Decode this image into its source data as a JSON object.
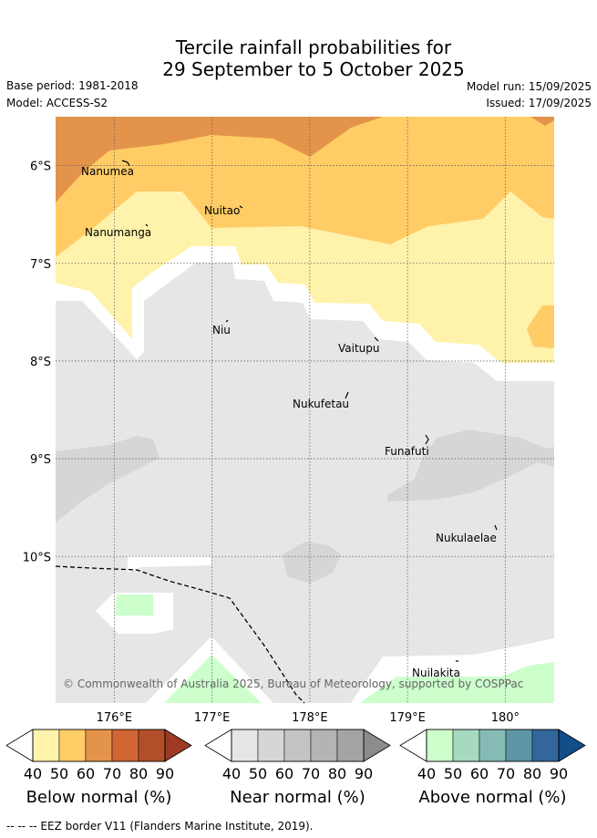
{
  "header": {
    "title_line1": "Tercile rainfall probabilities for",
    "title_line2": "29 September to 5 October 2025",
    "base_period": "Base period: 1981-2018",
    "model": "Model: ACCESS-S2",
    "model_run": "Model run: 15/09/2025",
    "issued": "Issued: 17/09/2025"
  },
  "chart_data": {
    "type": "heatmap",
    "title": "Tercile rainfall probabilities for 29 September to 5 October 2025",
    "x_axis": {
      "ticks": [
        "176°E",
        "177°E",
        "178°E",
        "179°E",
        "180°"
      ],
      "tick_values": [
        176,
        177,
        178,
        179,
        180
      ],
      "range": [
        175.4,
        180.5
      ]
    },
    "y_axis": {
      "ticks": [
        "6°S",
        "7°S",
        "8°S",
        "9°S",
        "10°S"
      ],
      "tick_values": [
        -6,
        -7,
        -8,
        -9,
        -10
      ],
      "range": [
        -11.5,
        -5.5
      ]
    },
    "grid": true,
    "places": [
      {
        "name": "Nanumea",
        "lon": 176.1,
        "lat": -5.7
      },
      {
        "name": "Nanumanga",
        "lon": 176.3,
        "lat": -6.3
      },
      {
        "name": "Nuitao",
        "lon": 177.3,
        "lat": -6.1
      },
      {
        "name": "Niu",
        "lon": 177.2,
        "lat": -7.3
      },
      {
        "name": "Vaitupu",
        "lon": 178.7,
        "lat": -7.5
      },
      {
        "name": "Nukufetau",
        "lon": 178.4,
        "lat": -8.0
      },
      {
        "name": "Funafuti",
        "lon": 179.2,
        "lat": -8.5
      },
      {
        "name": "Nukulaelae",
        "lon": 179.8,
        "lat": -9.4
      },
      {
        "name": "Nuilakita",
        "lon": 179.5,
        "lat": -10.7
      }
    ],
    "copyright": "© Commonwealth of Australia 2025, Bureau of Meteorology, supported by COSPPac",
    "colorbars": [
      {
        "name": "Below normal (%)",
        "ticks": [
          "40",
          "50",
          "60",
          "70",
          "80",
          "90"
        ],
        "colors": [
          "#fff2aa",
          "#ffcc66",
          "#e3944a",
          "#cf6633",
          "#b24f2b",
          "#9c3a24"
        ]
      },
      {
        "name": "Near normal (%)",
        "ticks": [
          "40",
          "50",
          "60",
          "70",
          "80",
          "90"
        ],
        "colors": [
          "#e6e6e6",
          "#d6d6d6",
          "#c4c4c4",
          "#b4b4b4",
          "#a4a4a4",
          "#8c8c8c"
        ]
      },
      {
        "name": "Above normal (%)",
        "ticks": [
          "40",
          "50",
          "60",
          "70",
          "80",
          "90"
        ],
        "colors": [
          "#ccffcc",
          "#a6d9c0",
          "#85bab5",
          "#5c96a4",
          "#33669a",
          "#144e88"
        ]
      }
    ]
  },
  "footer": {
    "eez_legend": "--  --  -- EEZ border V11 (Flanders Marine Institute, 2019)."
  }
}
